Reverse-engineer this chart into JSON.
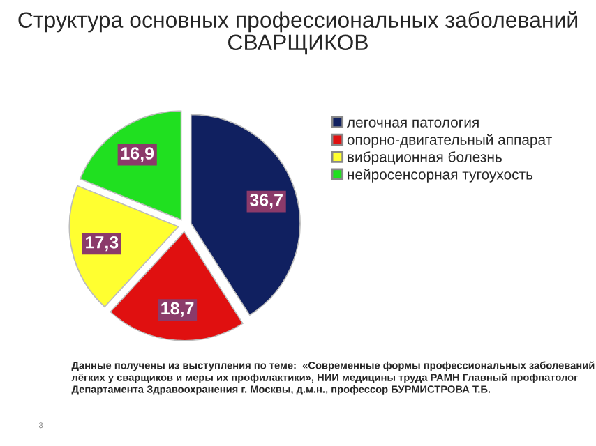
{
  "chart_data": {
    "type": "pie",
    "title": "Структура основных профессиональных заболеваний\nСВАРЩИКОВ",
    "categories": [
      "легочная патология",
      "опорно-двигательный аппарат",
      "вибрационная болезнь",
      "нейросенсорная тугоухость"
    ],
    "values": [
      36.7,
      18.7,
      17.3,
      16.9
    ],
    "colors": [
      "#102060",
      "#e01010",
      "#ffff30",
      "#20e020"
    ],
    "value_labels": [
      "36,7",
      "18,7",
      "17,3",
      "16,9"
    ],
    "legend": "right",
    "annotations": [
      "Данные получены из выступления по теме:  «Современные формы профессиональных заболеваний\nлёгких у сварщиков и меры их профилактики», НИИ медицины труда РАМН Главный профпатолог\nДепартамента Здравоохранения г. Москвы, д.м.н., профессор БУРМИСТРОВА Т.Б.",
      "3"
    ]
  }
}
